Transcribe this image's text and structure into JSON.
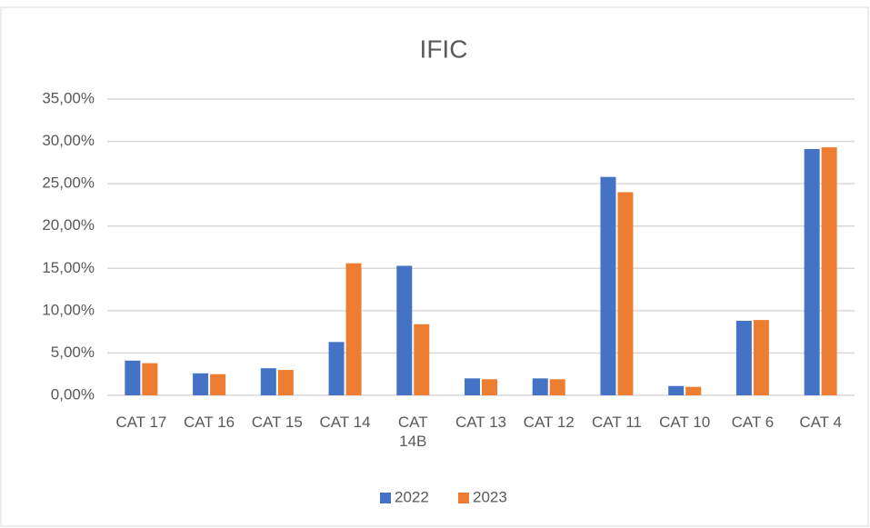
{
  "chart_data": {
    "type": "bar",
    "title": "IFIC",
    "categories": [
      "CAT 17",
      "CAT 16",
      "CAT 15",
      "CAT 14",
      "CAT 14B",
      "CAT 13",
      "CAT 12",
      "CAT 11",
      "CAT 10",
      "CAT 6",
      "CAT 4"
    ],
    "series": [
      {
        "name": "2022",
        "color": "#4472c4",
        "values": [
          4.1,
          2.6,
          3.2,
          6.3,
          15.3,
          2.0,
          2.0,
          25.8,
          1.1,
          8.8,
          29.1
        ]
      },
      {
        "name": "2023",
        "color": "#ed7d31",
        "values": [
          3.8,
          2.5,
          3.0,
          15.6,
          8.4,
          1.9,
          1.9,
          24.0,
          1.0,
          8.9,
          29.3
        ]
      }
    ],
    "ylim": [
      0,
      35
    ],
    "yticks": [
      {
        "value": 0,
        "label": "0,00%"
      },
      {
        "value": 5,
        "label": "5,00%"
      },
      {
        "value": 10,
        "label": "10,00%"
      },
      {
        "value": 15,
        "label": "15,00%"
      },
      {
        "value": 20,
        "label": "20,00%"
      },
      {
        "value": 25,
        "label": "25,00%"
      },
      {
        "value": 30,
        "label": "30,00%"
      },
      {
        "value": 35,
        "label": "35,00%"
      }
    ],
    "grid": true,
    "legend": "bottom"
  }
}
